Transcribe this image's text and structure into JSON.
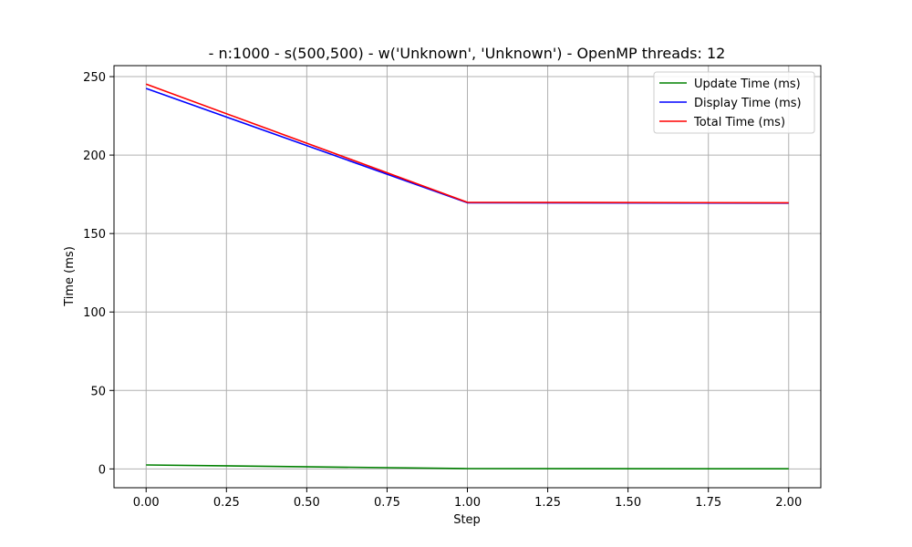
{
  "chart_data": {
    "type": "line",
    "title": "- n:1000 - s(500,500) - w('Unknown', 'Unknown') - OpenMP threads: 12",
    "xlabel": "Step",
    "ylabel": "Time (ms)",
    "x": [
      0,
      1,
      2
    ],
    "xlim": [
      -0.1,
      2.1
    ],
    "ylim": [
      -12,
      257
    ],
    "xticks": [
      0,
      0.25,
      0.5,
      0.75,
      1,
      1.25,
      1.5,
      1.75,
      2
    ],
    "xtick_labels": [
      "0.00",
      "0.25",
      "0.50",
      "0.75",
      "1.00",
      "1.25",
      "1.50",
      "1.75",
      "2.00"
    ],
    "yticks": [
      0,
      50,
      100,
      150,
      200,
      250
    ],
    "ytick_labels": [
      "0",
      "50",
      "100",
      "150",
      "200",
      "250"
    ],
    "grid": true,
    "legend_position": "top-right",
    "series": [
      {
        "name": "Update Time (ms)",
        "values": [
          2.5,
          0.2,
          0.1
        ],
        "color": "#008000"
      },
      {
        "name": "Display Time (ms)",
        "values": [
          242.5,
          169.6,
          169.4
        ],
        "color": "#0000ff"
      },
      {
        "name": "Total Time (ms)",
        "values": [
          245.2,
          169.9,
          169.6
        ],
        "color": "#ff0000"
      }
    ]
  }
}
